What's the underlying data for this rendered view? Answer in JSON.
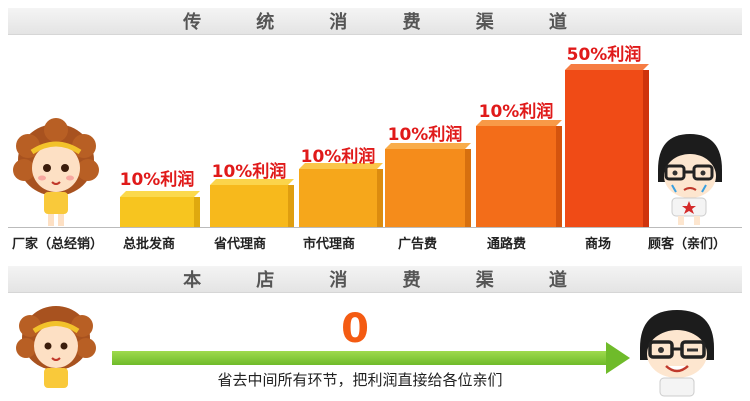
{
  "traditional": {
    "title_chars": [
      "传",
      "统",
      "消",
      "费",
      "渠",
      "道"
    ],
    "bars": [
      {
        "label": "10%利润",
        "channel": "总批发商"
      },
      {
        "label": "10%利润",
        "channel": "省代理商"
      },
      {
        "label": "10%利润",
        "channel": "市代理商"
      },
      {
        "label": "10%利润",
        "channel": "广告费"
      },
      {
        "label": "10%利润",
        "channel": "通路费"
      },
      {
        "label": "50%利润",
        "channel": "商场"
      }
    ],
    "left_party": "厂家（总经销）",
    "right_party": "顾客（亲们）"
  },
  "store": {
    "title_chars": [
      "本",
      "店",
      "消",
      "费",
      "渠",
      "道"
    ],
    "zero": "0",
    "caption": "省去中间所有环节，把利润直接给各位亲们"
  },
  "colors": {
    "profit_text": "#e01a1a",
    "arrow": "#6fbb2a",
    "zero": "#f45b12"
  }
}
